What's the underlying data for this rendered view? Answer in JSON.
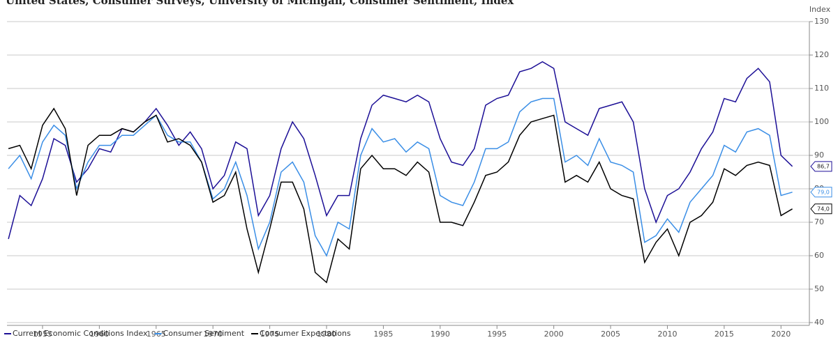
{
  "chart_data": {
    "type": "line",
    "title": "United States, Consumer Surveys, University of Michigan, Consumer Sentiment, Index",
    "y_label": "Index",
    "x": [
      1952,
      1953,
      1954,
      1955,
      1956,
      1957,
      1958,
      1959,
      1960,
      1961,
      1962,
      1963,
      1964,
      1965,
      1966,
      1967,
      1968,
      1969,
      1970,
      1971,
      1972,
      1973,
      1974,
      1975,
      1976,
      1977,
      1978,
      1979,
      1980,
      1981,
      1982,
      1983,
      1984,
      1985,
      1986,
      1987,
      1988,
      1989,
      1990,
      1991,
      1992,
      1993,
      1994,
      1995,
      1996,
      1997,
      1998,
      1999,
      2000,
      2001,
      2002,
      2003,
      2004,
      2005,
      2006,
      2007,
      2008,
      2009,
      2010,
      2011,
      2012,
      2013,
      2014,
      2015,
      2016,
      2017,
      2018,
      2019,
      2020,
      2021
    ],
    "series": [
      {
        "name": "Current Economic Conditions Index",
        "color": "#1c0f96",
        "values": [
          65,
          78,
          75,
          83,
          95,
          93,
          82,
          86,
          92,
          91,
          98,
          97,
          100,
          104,
          99,
          93,
          97,
          92,
          80,
          84,
          94,
          92,
          72,
          78,
          92,
          100,
          95,
          84,
          72,
          78,
          78,
          95,
          105,
          108,
          107,
          106,
          108,
          106,
          95,
          88,
          87,
          92,
          105,
          107,
          108,
          115,
          116,
          118,
          116,
          100,
          98,
          96,
          104,
          105,
          106,
          100,
          80,
          70,
          78,
          80,
          85,
          92,
          97,
          107,
          106,
          113,
          116,
          112,
          90,
          86.7
        ],
        "value_labels": [
          null,
          null,
          null,
          null,
          null,
          null,
          null,
          null,
          null,
          null,
          null,
          null,
          null,
          null,
          null,
          null,
          null,
          null,
          null,
          null,
          null,
          null,
          null,
          null,
          null,
          null,
          null,
          null,
          null,
          null,
          null,
          null,
          null,
          null,
          null,
          null,
          null,
          null,
          null,
          null,
          null,
          null,
          null,
          null,
          null,
          null,
          null,
          null,
          null,
          null,
          null,
          null,
          null,
          null,
          null,
          null,
          null,
          null,
          null,
          null,
          null,
          null,
          null,
          null,
          null,
          null,
          null,
          null,
          null,
          "86,7"
        ]
      },
      {
        "name": "Consumer Sentiment",
        "color": "#3a8ee6",
        "values": [
          86,
          90,
          83,
          94,
          99,
          96,
          80,
          88,
          93,
          93,
          96,
          96,
          99,
          102,
          96,
          94,
          94,
          88,
          77,
          80,
          88,
          78,
          62,
          70,
          85,
          88,
          82,
          66,
          60,
          70,
          68,
          90,
          98,
          94,
          95,
          91,
          94,
          92,
          78,
          76,
          75,
          82,
          92,
          92,
          94,
          103,
          106,
          107,
          107,
          88,
          90,
          87,
          95,
          88,
          87,
          85,
          64,
          66,
          71,
          67,
          76,
          80,
          84,
          93,
          91,
          97,
          98,
          96,
          78,
          79
        ],
        "value_labels": [
          null,
          null,
          null,
          null,
          null,
          null,
          null,
          null,
          null,
          null,
          null,
          null,
          null,
          null,
          null,
          null,
          null,
          null,
          null,
          null,
          null,
          null,
          null,
          null,
          null,
          null,
          null,
          null,
          null,
          null,
          null,
          null,
          null,
          null,
          null,
          null,
          null,
          null,
          null,
          null,
          null,
          null,
          null,
          null,
          null,
          null,
          null,
          null,
          null,
          null,
          null,
          null,
          null,
          null,
          null,
          null,
          null,
          null,
          null,
          null,
          null,
          null,
          null,
          null,
          null,
          null,
          null,
          null,
          null,
          "79,0"
        ]
      },
      {
        "name": "Consumer Expectations",
        "color": "#000000",
        "values": [
          92,
          93,
          86,
          99,
          104,
          98,
          78,
          93,
          96,
          96,
          98,
          97,
          100,
          102,
          94,
          95,
          93,
          88,
          76,
          78,
          85,
          68,
          55,
          68,
          82,
          82,
          74,
          55,
          52,
          65,
          62,
          86,
          90,
          86,
          86,
          84,
          88,
          85,
          70,
          70,
          69,
          76,
          84,
          85,
          88,
          96,
          100,
          101,
          102,
          82,
          84,
          82,
          88,
          80,
          78,
          77,
          58,
          64,
          68,
          60,
          70,
          72,
          76,
          86,
          84,
          87,
          88,
          87,
          72,
          74
        ],
        "value_labels": [
          null,
          null,
          null,
          null,
          null,
          null,
          null,
          null,
          null,
          null,
          null,
          null,
          null,
          null,
          null,
          null,
          null,
          null,
          null,
          null,
          null,
          null,
          null,
          null,
          null,
          null,
          null,
          null,
          null,
          null,
          null,
          null,
          null,
          null,
          null,
          null,
          null,
          null,
          null,
          null,
          null,
          null,
          null,
          null,
          null,
          null,
          null,
          null,
          null,
          null,
          null,
          null,
          null,
          null,
          null,
          null,
          null,
          null,
          null,
          null,
          null,
          null,
          null,
          null,
          null,
          null,
          null,
          null,
          null,
          "74,0"
        ]
      }
    ],
    "xlim": [
      1951.87,
      2022.5
    ],
    "xticks": [
      1955,
      1960,
      1965,
      1970,
      1975,
      1980,
      1985,
      1990,
      1995,
      2000,
      2005,
      2010,
      2015,
      2020
    ],
    "ylim": [
      40,
      130
    ],
    "yticks": [
      40,
      50,
      60,
      70,
      80,
      90,
      100,
      110,
      120,
      130
    ],
    "grid": true,
    "legend": "bottom-left"
  }
}
